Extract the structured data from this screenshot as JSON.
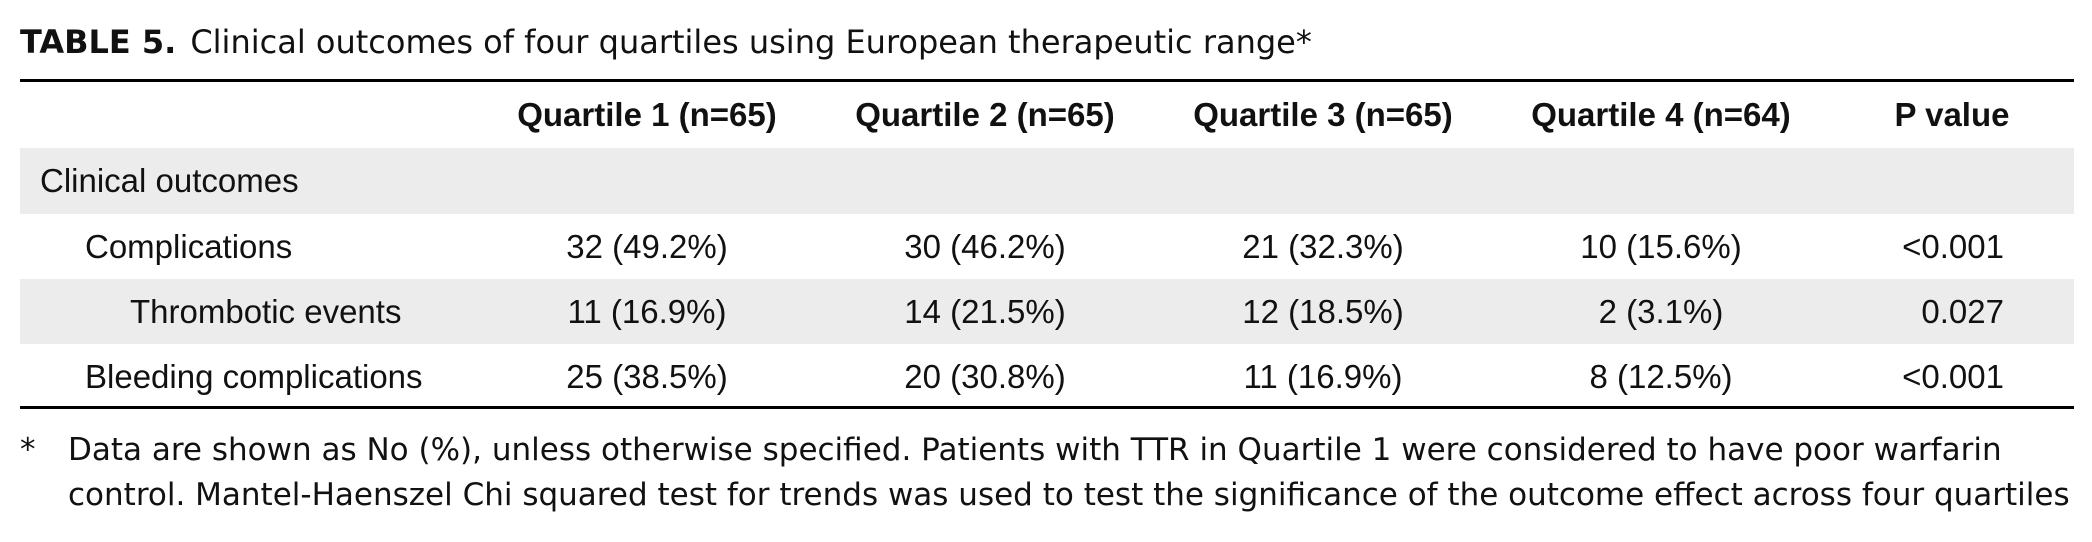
{
  "caption": {
    "label": "TABLE 5.",
    "title": "Clinical outcomes of four quartiles using European therapeutic range*"
  },
  "table": {
    "columns": [
      "",
      "Quartile 1 (n=65)",
      "Quartile 2 (n=65)",
      "Quartile 3 (n=65)",
      "Quartile 4 (n=64)",
      "P value"
    ],
    "section": "Clinical outcomes",
    "rows": [
      {
        "label": "Complications",
        "q1": "32 (49.2%)",
        "q2": "30 (46.2%)",
        "q3": "21 (32.3%)",
        "q4": "10 (15.6%)",
        "p": "<0.001"
      },
      {
        "label": "Thrombotic events",
        "q1": "11 (16.9%)",
        "q2": "14 (21.5%)",
        "q3": "12 (18.5%)",
        "q4": "2 (3.1%)",
        "p": "0.027"
      },
      {
        "label": "Bleeding complications",
        "q1": "25 (38.5%)",
        "q2": "20 (30.8%)",
        "q3": "11 (16.9%)",
        "q4": "8 (12.5%)",
        "p": "<0.001"
      }
    ]
  },
  "footnote": {
    "mark": "*",
    "line1": "Data are shown as No (%), unless otherwise specified. Patients with TTR in Quartile 1 were considered to have poor warfarin",
    "line2": "control. Mantel-Haenszel Chi squared test for trends was used to test the significance of the outcome effect across four quartiles"
  },
  "colors": {
    "row_shade": "#ececec",
    "rule": "#000000",
    "text": "#111111"
  }
}
